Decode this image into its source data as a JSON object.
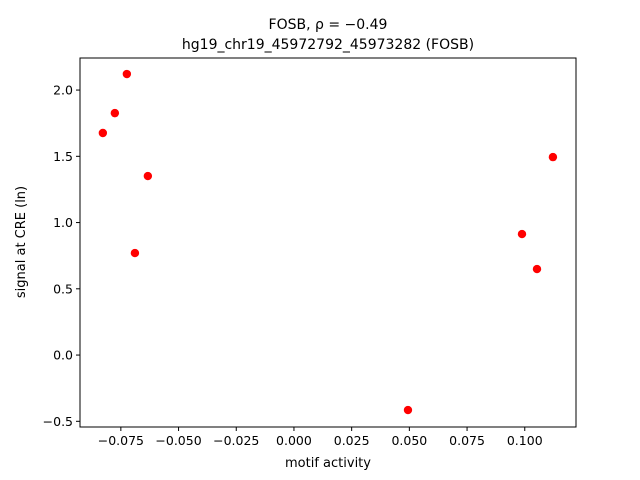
{
  "chart_data": {
    "type": "scatter",
    "title": "FOSB, ρ = −0.49",
    "subtitle": "hg19_chr19_45972792_45973282 (FOSB)",
    "xlabel": "motif activity",
    "ylabel": "signal at CRE (ln)",
    "color": "#ff0000",
    "x": [
      -0.0828,
      -0.0776,
      -0.0724,
      -0.0689,
      -0.0633,
      0.0494,
      0.0988,
      0.1053,
      0.1122
    ],
    "values": [
      1.676,
      1.826,
      2.121,
      0.77,
      1.351,
      -0.415,
      0.913,
      0.649,
      1.494
    ],
    "xlim": [
      -0.0927,
      0.1222
    ],
    "ylim": [
      -0.543,
      2.242
    ],
    "xticks": [
      {
        "value": -0.075,
        "label": "−0.075"
      },
      {
        "value": -0.05,
        "label": "−0.050"
      },
      {
        "value": -0.025,
        "label": "−0.025"
      },
      {
        "value": 0,
        "label": "0.000"
      },
      {
        "value": 0.025,
        "label": "0.025"
      },
      {
        "value": 0.05,
        "label": "0.050"
      },
      {
        "value": 0.075,
        "label": "0.075"
      },
      {
        "value": 0.1,
        "label": "0.100"
      }
    ],
    "yticks": [
      {
        "value": -0.5,
        "label": "−0.5"
      },
      {
        "value": 0,
        "label": "0.0"
      },
      0.5,
      {
        "value": 1,
        "label": "1.0"
      },
      1.5,
      {
        "value": 2,
        "label": "2.0"
      }
    ],
    "grid": false
  }
}
